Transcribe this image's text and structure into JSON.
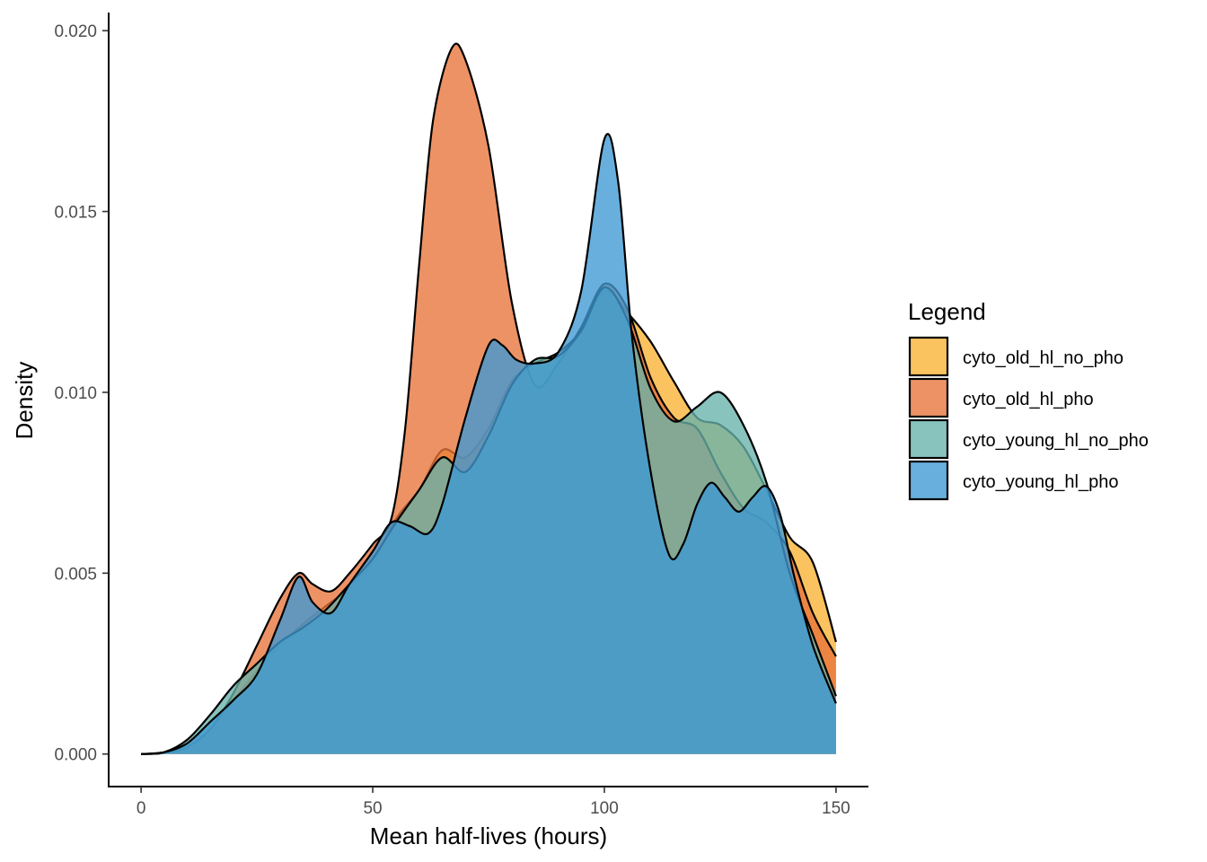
{
  "chart_data": {
    "type": "area",
    "subtype": "density",
    "xlabel": "Mean half-lives (hours)",
    "ylabel": "Density",
    "xlim": [
      -7,
      157
    ],
    "ylim": [
      -0.0009,
      0.0205
    ],
    "x_ticks": [
      0,
      50,
      100,
      150
    ],
    "x_tick_labels": [
      "0",
      "50",
      "100",
      "150"
    ],
    "y_ticks": [
      0.0,
      0.005,
      0.01,
      0.015,
      0.02
    ],
    "y_tick_labels": [
      "0.000",
      "0.005",
      "0.010",
      "0.015",
      "0.020"
    ],
    "grid": false,
    "legend_title": "Legend",
    "legend_position": "right",
    "series": [
      {
        "name": "cyto_old_hl_no_pho",
        "color": "#F9B233",
        "points": [
          [
            0,
            0
          ],
          [
            5,
            3e-05
          ],
          [
            10,
            0.00018
          ],
          [
            15,
            0.0007
          ],
          [
            20,
            0.0015
          ],
          [
            25,
            0.0023
          ],
          [
            30,
            0.003
          ],
          [
            35,
            0.0036
          ],
          [
            40,
            0.0041
          ],
          [
            45,
            0.0046
          ],
          [
            50,
            0.0053
          ],
          [
            55,
            0.0065
          ],
          [
            60,
            0.0073
          ],
          [
            65,
            0.0084
          ],
          [
            70,
            0.0082
          ],
          [
            75,
            0.009
          ],
          [
            80,
            0.0103
          ],
          [
            85,
            0.0108
          ],
          [
            90,
            0.0111
          ],
          [
            95,
            0.0117
          ],
          [
            100,
            0.0128
          ],
          [
            105,
            0.0122
          ],
          [
            110,
            0.0114
          ],
          [
            115,
            0.0103
          ],
          [
            120,
            0.0093
          ],
          [
            125,
            0.0091
          ],
          [
            130,
            0.0085
          ],
          [
            135,
            0.0073
          ],
          [
            140,
            0.006
          ],
          [
            145,
            0.0053
          ],
          [
            150,
            0.0031
          ]
        ]
      },
      {
        "name": "cyto_old_hl_pho",
        "color": "#E8733A",
        "points": [
          [
            0,
            0
          ],
          [
            5,
            3e-05
          ],
          [
            10,
            0.0002
          ],
          [
            15,
            0.0007
          ],
          [
            20,
            0.0017
          ],
          [
            25,
            0.003
          ],
          [
            30,
            0.0043
          ],
          [
            34,
            0.005
          ],
          [
            37,
            0.0047
          ],
          [
            41,
            0.0045
          ],
          [
            45,
            0.005
          ],
          [
            50,
            0.0058
          ],
          [
            54,
            0.0065
          ],
          [
            57,
            0.009
          ],
          [
            60,
            0.0135
          ],
          [
            63,
            0.0175
          ],
          [
            67,
            0.0195
          ],
          [
            70,
            0.0192
          ],
          [
            75,
            0.0168
          ],
          [
            80,
            0.0125
          ],
          [
            85,
            0.0102
          ],
          [
            90,
            0.0108
          ],
          [
            95,
            0.0118
          ],
          [
            100,
            0.013
          ],
          [
            105,
            0.0123
          ],
          [
            110,
            0.0104
          ],
          [
            115,
            0.0093
          ],
          [
            120,
            0.009
          ],
          [
            125,
            0.0078
          ],
          [
            130,
            0.0068
          ],
          [
            135,
            0.0064
          ],
          [
            140,
            0.0056
          ],
          [
            145,
            0.0039
          ],
          [
            150,
            0.0027
          ]
        ]
      },
      {
        "name": "cyto_young_hl_no_pho",
        "color": "#66B2AA",
        "points": [
          [
            0,
            0
          ],
          [
            5,
            5e-05
          ],
          [
            10,
            0.0004
          ],
          [
            15,
            0.0011
          ],
          [
            20,
            0.0019
          ],
          [
            25,
            0.0025
          ],
          [
            30,
            0.0031
          ],
          [
            35,
            0.0035
          ],
          [
            40,
            0.004
          ],
          [
            45,
            0.0047
          ],
          [
            50,
            0.0054
          ],
          [
            55,
            0.0064
          ],
          [
            60,
            0.0073
          ],
          [
            65,
            0.0082
          ],
          [
            70,
            0.0078
          ],
          [
            75,
            0.0088
          ],
          [
            80,
            0.0102
          ],
          [
            85,
            0.0109
          ],
          [
            90,
            0.011
          ],
          [
            95,
            0.0117
          ],
          [
            100,
            0.0129
          ],
          [
            105,
            0.012
          ],
          [
            110,
            0.0101
          ],
          [
            115,
            0.0092
          ],
          [
            120,
            0.0096
          ],
          [
            125,
            0.01
          ],
          [
            130,
            0.0091
          ],
          [
            135,
            0.0075
          ],
          [
            140,
            0.005
          ],
          [
            145,
            0.0033
          ],
          [
            150,
            0.0016
          ]
        ]
      },
      {
        "name": "cyto_young_hl_pho",
        "color": "#3E99D4",
        "points": [
          [
            0,
            0
          ],
          [
            5,
            5e-05
          ],
          [
            10,
            0.0003
          ],
          [
            15,
            0.0009
          ],
          [
            20,
            0.0015
          ],
          [
            25,
            0.0022
          ],
          [
            30,
            0.0037
          ],
          [
            34,
            0.0049
          ],
          [
            37,
            0.0042
          ],
          [
            41,
            0.0039
          ],
          [
            45,
            0.0047
          ],
          [
            50,
            0.0056
          ],
          [
            54,
            0.0064
          ],
          [
            58,
            0.0063
          ],
          [
            62,
            0.0061
          ],
          [
            65,
            0.0069
          ],
          [
            70,
            0.0093
          ],
          [
            75,
            0.0113
          ],
          [
            78,
            0.0113
          ],
          [
            81,
            0.0109
          ],
          [
            85,
            0.0108
          ],
          [
            90,
            0.0111
          ],
          [
            95,
            0.0128
          ],
          [
            100,
            0.017
          ],
          [
            103,
            0.0158
          ],
          [
            106,
            0.0115
          ],
          [
            110,
            0.0078
          ],
          [
            114,
            0.0055
          ],
          [
            117,
            0.0058
          ],
          [
            120,
            0.0069
          ],
          [
            123,
            0.0075
          ],
          [
            126,
            0.0071
          ],
          [
            129,
            0.0067
          ],
          [
            132,
            0.0071
          ],
          [
            135,
            0.0074
          ],
          [
            138,
            0.0066
          ],
          [
            141,
            0.0049
          ],
          [
            145,
            0.003
          ],
          [
            150,
            0.0014
          ]
        ]
      }
    ]
  }
}
